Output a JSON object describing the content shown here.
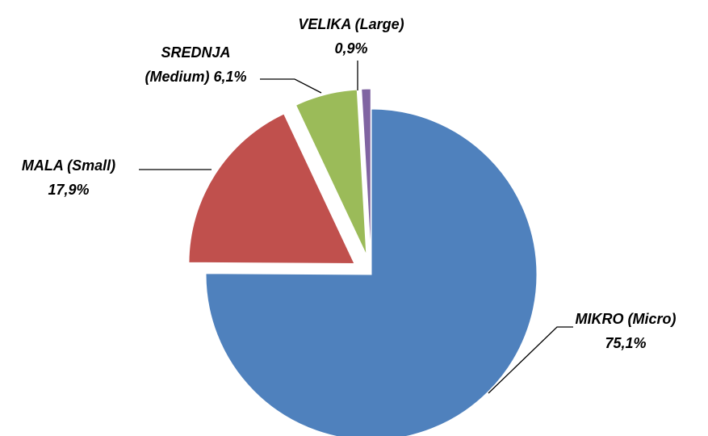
{
  "chart_data": {
    "type": "pie",
    "categories": [
      "MIKRO (Micro)",
      "MALA (Small)",
      "SREDNJA (Medium)",
      "VELIKA (Large)"
    ],
    "values": [
      75.1,
      17.9,
      6.1,
      0.9
    ],
    "value_labels": [
      "75,1%",
      "17,9%",
      "6,1%",
      "0,9%"
    ],
    "colors": [
      "#4f81bd",
      "#c0504d",
      "#9bbb59",
      "#8064a2"
    ]
  }
}
